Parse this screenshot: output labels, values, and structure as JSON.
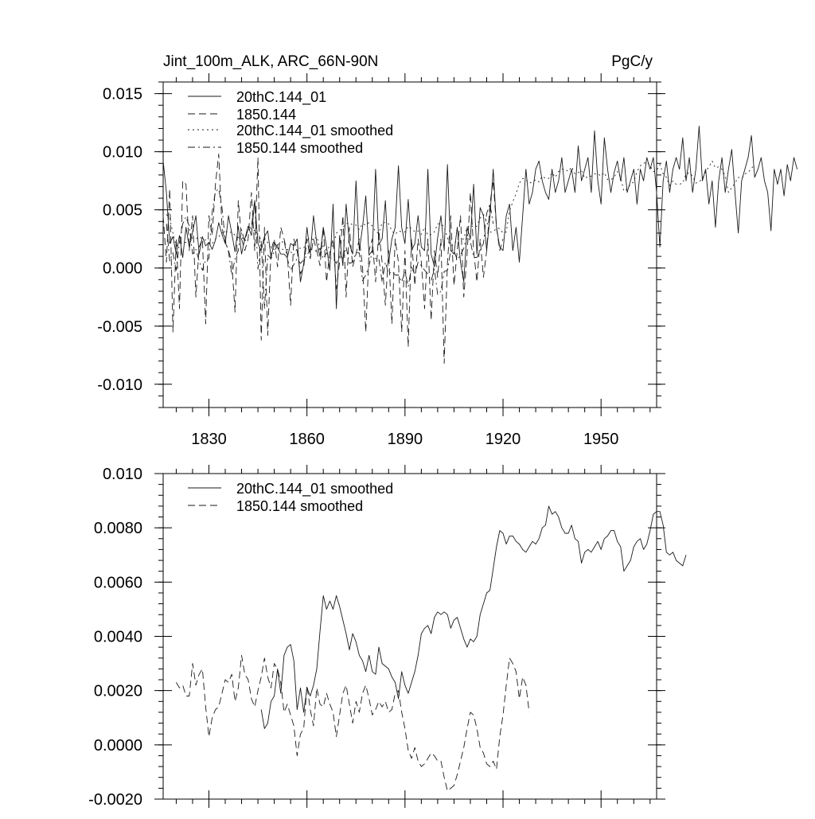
{
  "chart_data": [
    {
      "type": "line",
      "title": "Jint_100m_ALK, ARC_66N-90N",
      "title_right": "PgC/y",
      "xlabel": "",
      "ylabel": "",
      "xlim": [
        1816,
        1967
      ],
      "ylim": [
        -0.012,
        0.016
      ],
      "xticks": [
        1830,
        1860,
        1890,
        1920,
        1950
      ],
      "xtick_labels": [
        "1830",
        "1860",
        "1890",
        "1920",
        "1950"
      ],
      "yticks": [
        0.015,
        0.01,
        0.005,
        0.0,
        -0.005,
        -0.01
      ],
      "ytick_labels": [
        "0.015",
        "0.010",
        "0.005",
        "0.000",
        "-0.005",
        "-0.010"
      ],
      "legend_position": "top-left",
      "series": [
        {
          "name": "20thC.144_01",
          "style": "solid",
          "x_start": 1816,
          "values": [
            0.0092,
            0.0065,
            0.0021,
            0.0027,
            0.0012,
            0.0028,
            0.0009,
            0.0035,
            0.0018,
            0.0031,
            0.0045,
            0.0012,
            0.0027,
            0.0019,
            0.0022,
            0.0016,
            0.0024,
            0.0039,
            0.0029,
            0.0021,
            0.0045,
            0.003,
            0.0014,
            0.0036,
            0.0012,
            0.0025,
            0.0036,
            0.0028,
            0.0058,
            0.0021,
            0.0015,
            0.0027,
            0.0032,
            0.0009,
            0.0022,
            0.0018,
            0.0012,
            0.0012,
            0.0009,
            0.0021,
            0.0019,
            0.0025,
            -0.0012,
            0.0004,
            0.0035,
            0.0012,
            0.0045,
            0.0021,
            0.001,
            0.0035,
            0.0018,
            -0.0002,
            0.0055,
            -0.0035,
            0.0028,
            0.0002,
            0.0055,
            0.0021,
            0.0012,
            0.0075,
            0.0015,
            0.0035,
            0.0062,
            0.0011,
            0.0015,
            0.0085,
            0.002,
            0.0025,
            0.0058,
            0.0005,
            0.0025,
            0.0035,
            0.0088,
            0.0035,
            0.0021,
            0.0059,
            0.0015,
            0.0021,
            0.0045,
            0.0018,
            0.0015,
            0.0085,
            0.0012,
            0.0001,
            0.0026,
            0.0045,
            0.0015,
            0.0089,
            0.0015,
            0.0012,
            0.0035,
            0.0005,
            -0.0012,
            0.0035,
            0.0025,
            0.0072,
            0.0012,
            0.0052,
            0.0045,
            0.0015,
            0.0045,
            0.0085,
            0.0035,
            0.0018,
            0.0015,
            0.0045,
            0.0055,
            0.0015,
            0.0035,
            0.0005,
            0.0045,
            0.0085,
            0.0055,
            0.0065,
            0.0085,
            0.0092,
            0.0075,
            0.0065,
            0.0059,
            0.0085,
            0.0065,
            0.0075,
            0.0095,
            0.0065,
            0.0075,
            0.0085,
            0.0065,
            0.0105,
            0.0075,
            0.0085,
            0.0095,
            0.0065,
            0.0118,
            0.0075,
            0.0055,
            0.0112,
            0.0085,
            0.0065,
            0.0082,
            0.0092,
            0.0075,
            0.0095,
            0.0065,
            0.0075,
            0.0085,
            0.0055,
            0.0085,
            0.0075,
            0.0095,
            0.0085,
            0.0095,
            0.0065,
            0.0018,
            0.0075,
            0.0092,
            0.0065,
            0.0085,
            0.0095,
            0.0085,
            0.0112,
            0.0075,
            0.0095,
            0.0065,
            0.0085,
            0.0122,
            0.0075,
            0.0085,
            0.0055,
            0.0075,
            0.0035,
            0.0075,
            0.0095,
            0.0065,
            0.0085,
            0.0102,
            0.0065,
            0.003,
            0.0075,
            0.0085,
            0.0095,
            0.0114,
            0.0078,
            0.0085,
            0.0095,
            0.0075,
            0.0065,
            0.0032,
            0.0085,
            0.0072,
            0.0085,
            0.0062,
            0.0089,
            0.0075,
            0.0095,
            0.0085
          ]
        },
        {
          "name": "1850.144",
          "style": "dashed",
          "x_start": 1816,
          "values": [
            0.0045,
            0.0005,
            0.0068,
            -0.0055,
            0.0025,
            -0.0035,
            0.0075,
            0.0072,
            0.0015,
            0.0045,
            -0.0025,
            0.0018,
            0.0025,
            -0.0048,
            0.0045,
            0.0028,
            0.0072,
            0.0098,
            0.0035,
            0.0022,
            0.0015,
            0.0005,
            -0.0038,
            0.0058,
            0.0025,
            0.0015,
            0.0025,
            0.0065,
            0.0015,
            0.0095,
            -0.0062,
            0.0035,
            -0.0058,
            0.0015,
            0.0025,
            0.0001,
            0.0035,
            0.0025,
            0.0012,
            -0.0032,
            0.0025,
            0.0015,
            -0.0005,
            0.0001,
            0.0025,
            0.0008,
            0.0025,
            0.0015,
            0.0002,
            0.0035,
            -0.0012,
            0.0015,
            0.0025,
            -0.0018,
            0.0005,
            0.0045,
            -0.0025,
            0.0035,
            0.0001,
            0.0012,
            0.0025,
            0.0001,
            -0.0055,
            0.0015,
            0.0025,
            -0.0012,
            0.0032,
            0.0005,
            -0.0032,
            0.0015,
            -0.0048,
            0.0025,
            0.0005,
            -0.0055,
            0.0015,
            -0.0068,
            0.0025,
            -0.0015,
            0.0025,
            0.0005,
            -0.0035,
            0.0025,
            -0.0045,
            0.0015,
            -0.0008,
            0.0025,
            -0.0082,
            0.0005,
            0.0045,
            -0.0015,
            0.0015,
            0.0045,
            -0.0025,
            0.0012,
            0.0065,
            0.0015,
            -0.0012,
            0.0025,
            -0.0008,
            0.0015,
            0.0055,
            0.0075,
            0.0035,
            0.0015,
            0.0025
          ]
        },
        {
          "name": "20thC.144_01 smoothed",
          "style": "dotted",
          "x_start": 1817,
          "values": [
            0.0046,
            0.0043,
            0.003,
            0.0019,
            0.0021,
            0.0022,
            0.0022,
            0.0022,
            0.0026,
            0.0025,
            0.0027,
            0.0025,
            0.0024,
            0.0021,
            0.0021,
            0.0025,
            0.0027,
            0.003,
            0.0032,
            0.003,
            0.0031,
            0.0028,
            0.0026,
            0.0026,
            0.0025,
            0.0033,
            0.0034,
            0.0032,
            0.0029,
            0.0024,
            0.0024,
            0.0022,
            0.0017,
            0.0016,
            0.0017,
            0.0016,
            0.0016,
            0.0016,
            0.0014,
            0.0011,
            0.0017,
            0.0017,
            0.0017,
            0.0024,
            0.0026,
            0.0024,
            0.0027,
            0.0016,
            0.0019,
            0.0015,
            0.0019,
            0.0019,
            0.003,
            0.0032,
            0.0035,
            0.0038,
            0.0039,
            0.0037,
            0.0037,
            0.0033,
            0.0038,
            0.0037,
            0.0039,
            0.0036,
            0.0031,
            0.003,
            0.0039,
            0.0039,
            0.0038,
            0.0032,
            0.0029,
            0.0032,
            0.0031,
            0.0031,
            0.0036,
            0.0034,
            0.0031,
            0.0032,
            0.0029,
            0.0035,
            0.0028,
            0.0029,
            0.0031,
            0.0038,
            0.0038,
            0.0035,
            0.0026,
            0.0019,
            0.002,
            0.0025,
            0.0025,
            0.0025,
            0.0035,
            0.0037,
            0.0035,
            0.0036,
            0.0043,
            0.0046,
            0.004,
            0.0031,
            0.0031,
            0.0034,
            0.0034,
            0.003,
            0.0031,
            0.0049,
            0.0057,
            0.0064,
            0.0073,
            0.0077,
            0.0076,
            0.0073,
            0.0074,
            0.0076,
            0.0074,
            0.0079,
            0.0077,
            0.0077,
            0.0082,
            0.0078,
            0.0083,
            0.0085,
            0.0085,
            0.0083,
            0.0087,
            0.0081,
            0.0082,
            0.0084,
            0.0077,
            0.0079,
            0.0079,
            0.0081,
            0.0081,
            0.0079,
            0.0082,
            0.0076,
            0.0076,
            0.0078,
            0.0083,
            0.0078,
            0.0066,
            0.0068,
            0.0072,
            0.0074,
            0.0083,
            0.0088,
            0.009,
            0.0091,
            0.0088,
            0.0083,
            0.0084,
            0.0089,
            0.0081,
            0.0078,
            0.0071,
            0.0075,
            0.0072,
            0.0072,
            0.0073,
            0.0081,
            0.0082,
            0.0079,
            0.0073,
            0.0074,
            0.0077,
            0.0083,
            0.0087,
            0.0092,
            0.0086,
            0.0087,
            0.0085,
            0.0079,
            0.0065,
            0.0069,
            0.0073,
            0.0078,
            0.0077,
            0.0081,
            0.0082,
            0.0086,
            0.0088
          ]
        },
        {
          "name": "1850.144 smoothed",
          "style": "dash-dot",
          "x_start": 1817,
          "values": [
            0.0038,
            0.0006,
            0.0013,
            -0.0002,
            0.0022,
            0.0038,
            0.0044,
            0.0036,
            0.0012,
            0.0016,
            0.0006,
            -0.0002,
            0.0007,
            0.0008,
            0.0048,
            0.0066,
            0.0068,
            0.0052,
            0.0024,
            0.0014,
            -0.0006,
            0.0008,
            0.0015,
            0.0033,
            0.0022,
            0.0035,
            0.0035,
            0.0058,
            -0.0001,
            0.0023,
            -0.0035,
            0.0011,
            0.0008,
            0.0014,
            0.002,
            0.0021,
            0.0024,
            0.0008,
            -0.0002,
            0.0003,
            0.0008,
            0.0004,
            0.0007,
            0.0011,
            0.0016,
            0.0016,
            0.0014,
            0.0017,
            0.0008,
            0.0013,
            0.0009,
            0.0008,
            0.0004,
            0.0011,
            0.0008,
            0.0018,
            0.0004,
            0.0005,
            0.0013,
            0.0013,
            -0.0011,
            -0.0006,
            0.0002,
            0.0015,
            0.0008,
            0.0008,
            -0.0012,
            0.0005,
            -0.0005,
            -0.0003,
            -0.0006,
            -0.0006,
            -0.0012,
            -0.0003,
            -0.0016,
            0.0001,
            -0.0006,
            0.0005,
            0.0002,
            -0.0002,
            -0.0005,
            -0.0011,
            -0.0001,
            -0.0023,
            -0.002,
            -0.0003,
            -0.0002,
            0.0015,
            0.0015,
            0.0007,
            0.0011,
            0.0017,
            0.0029,
            0.0023,
            0.0009,
            0.0009,
            0.0015,
            0.0021,
            0.0047,
            0.0055,
            0.0038
          ]
        }
      ]
    },
    {
      "type": "line",
      "title": "",
      "xlabel": "",
      "ylabel": "",
      "xlim": [
        1816,
        1967
      ],
      "ylim": [
        -0.002,
        0.01
      ],
      "xticks": [
        1830,
        1860,
        1890,
        1920,
        1950
      ],
      "yticks": [
        0.01,
        0.008,
        0.006,
        0.004,
        0.002,
        0.0,
        -0.002
      ],
      "ytick_labels": [
        "0.010",
        "0.0080",
        "0.0060",
        "0.0040",
        "0.0020",
        "0.0000",
        "-0.0020"
      ],
      "legend_position": "top-left",
      "series": [
        {
          "name": "20thC.144_01 smoothed",
          "style": "solid",
          "x_start": 1846,
          "values": [
            0.0013,
            0.0006,
            0.0008,
            0.0016,
            0.0018,
            0.0028,
            0.0019,
            0.0033,
            0.0036,
            0.0037,
            0.0031,
            0.0013,
            0.0021,
            0.0012,
            0.0021,
            0.0018,
            0.0022,
            0.0028,
            0.0042,
            0.0055,
            0.005,
            0.0053,
            0.005,
            0.0055,
            0.0051,
            0.0046,
            0.0041,
            0.0035,
            0.0041,
            0.0038,
            0.0033,
            0.0031,
            0.0027,
            0.0033,
            0.0027,
            0.0026,
            0.0036,
            0.003,
            0.0029,
            0.0028,
            0.0025,
            0.0023,
            0.0017,
            0.0027,
            0.0022,
            0.0019,
            0.0023,
            0.0027,
            0.0033,
            0.0041,
            0.0043,
            0.0044,
            0.0041,
            0.0047,
            0.0049,
            0.0048,
            0.0049,
            0.0048,
            0.0043,
            0.0046,
            0.0047,
            0.0043,
            0.0039,
            0.0036,
            0.0039,
            0.0038,
            0.004,
            0.0048,
            0.0052,
            0.0056,
            0.0057,
            0.0065,
            0.0073,
            0.0079,
            0.0078,
            0.0074,
            0.0077,
            0.0077,
            0.0075,
            0.0074,
            0.0072,
            0.0071,
            0.0073,
            0.0075,
            0.0074,
            0.0076,
            0.008,
            0.0081,
            0.0088,
            0.0085,
            0.0086,
            0.0084,
            0.008,
            0.0078,
            0.0078,
            0.0081,
            0.0076,
            0.0075,
            0.0067,
            0.0071,
            0.0072,
            0.0071,
            0.0073,
            0.0075,
            0.0072,
            0.0076,
            0.0077,
            0.0079,
            0.0079,
            0.0075,
            0.0073,
            0.0064,
            0.0066,
            0.0068,
            0.0073,
            0.0075,
            0.0076,
            0.0072,
            0.0074,
            0.0079,
            0.0085,
            0.0086,
            0.0086,
            0.0081,
            0.0071,
            0.007,
            0.0071,
            0.0068,
            0.0067,
            0.0066,
            0.007
          ]
        },
        {
          "name": "1850.144 smoothed",
          "style": "dashed",
          "x_start": 1820,
          "values": [
            0.0023,
            0.0021,
            0.0022,
            0.0018,
            0.0018,
            0.003,
            0.0022,
            0.0026,
            0.0028,
            0.0014,
            0.0003,
            0.001,
            0.0013,
            0.0014,
            0.0019,
            0.0024,
            0.0023,
            0.0026,
            0.0016,
            0.0021,
            0.0033,
            0.0026,
            0.0024,
            0.0017,
            0.0014,
            0.002,
            0.0025,
            0.0032,
            0.0025,
            0.0021,
            0.003,
            0.0028,
            0.0023,
            0.0012,
            0.0015,
            0.0011,
            0.0007,
            -0.0004,
            0.0004,
            0.0006,
            0.0022,
            0.0013,
            0.0007,
            0.0021,
            0.0015,
            0.0014,
            0.0019,
            0.0015,
            0.0012,
            0.0003,
            0.0011,
            0.0019,
            0.0022,
            0.0015,
            0.0008,
            0.0016,
            0.0012,
            0.0019,
            0.0022,
            0.0017,
            0.0011,
            0.0013,
            0.0016,
            0.0014,
            0.0016,
            0.0012,
            0.0013,
            0.0019,
            0.002,
            0.0012,
            0.0006,
            -0.0002,
            -0.0005,
            -0.0001,
            -0.0006,
            -0.0008,
            -0.0007,
            -0.0005,
            -0.0003,
            -0.0004,
            -0.0006,
            -0.0006,
            -0.0012,
            -0.0017,
            -0.0016,
            -0.0015,
            -0.0011,
            -0.0006,
            -0.0001,
            0.0006,
            0.0012,
            0.0011,
            0.0006,
            -0.0001,
            -0.0003,
            -0.0007,
            -0.0008,
            -0.0006,
            -0.0009,
            0.0003,
            0.0011,
            0.0022,
            0.0032,
            0.003,
            0.0027,
            0.0017,
            0.0025,
            0.0022,
            0.0012
          ]
        }
      ]
    }
  ]
}
